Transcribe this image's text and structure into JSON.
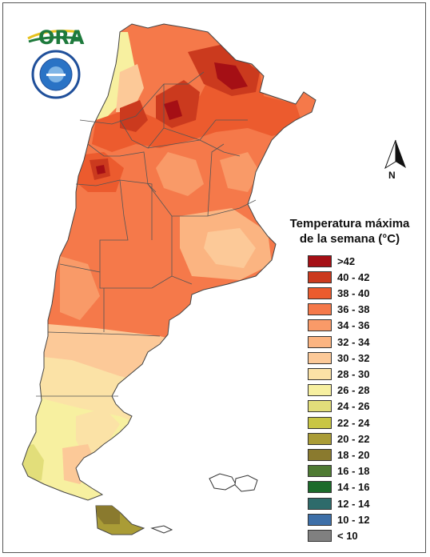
{
  "logo": {
    "text": "ORA"
  },
  "seal": {
    "text": "SERVICIO METEOROLOGICO NACIONAL ARGENTINA"
  },
  "north_arrow": {
    "label": "N"
  },
  "legend": {
    "title_line1": "Temperatura máxima",
    "title_line2": "de la semana (°C)",
    "items": [
      {
        "label": ">42",
        "color": "#a50f15"
      },
      {
        "label": "40 - 42",
        "color": "#cb3a1e"
      },
      {
        "label": "38 - 40",
        "color": "#ec5b2e"
      },
      {
        "label": "36 - 38",
        "color": "#f5794a"
      },
      {
        "label": "34 - 36",
        "color": "#f99a68"
      },
      {
        "label": "32 - 34",
        "color": "#fbb481"
      },
      {
        "label": "30 - 32",
        "color": "#fcc998"
      },
      {
        "label": "28 - 30",
        "color": "#fbe2a6"
      },
      {
        "label": "26 - 28",
        "color": "#f7f0a0"
      },
      {
        "label": "24 - 26",
        "color": "#e2de7a"
      },
      {
        "label": "22 - 24",
        "color": "#c9c644"
      },
      {
        "label": "20 - 22",
        "color": "#aa9c36"
      },
      {
        "label": "18 - 20",
        "color": "#8a7a2e"
      },
      {
        "label": "16 - 18",
        "color": "#4e7a32"
      },
      {
        "label": "14 - 16",
        "color": "#1b6b2a"
      },
      {
        "label": "12 - 14",
        "color": "#2e6b6b"
      },
      {
        "label": "10 - 12",
        "color": "#3d6fa8"
      },
      {
        "label": "< 10",
        "color": "#808080"
      }
    ]
  }
}
